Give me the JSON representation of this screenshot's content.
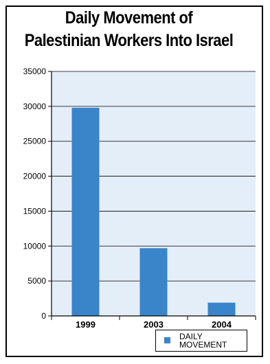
{
  "chart_data": {
    "type": "bar",
    "title_lines": [
      "Daily Movement of",
      "Palestinian Workers Into Israel"
    ],
    "categories": [
      "1999",
      "2003",
      "2004"
    ],
    "series": [
      {
        "name": "DAILY MOVEMENT",
        "values": [
          29800,
          9700,
          1900
        ]
      }
    ],
    "ylim": [
      0,
      35000
    ],
    "yticks": [
      "0",
      "5000",
      "10000",
      "15000",
      "20000",
      "25000",
      "30000",
      "35000"
    ],
    "ytick_values": [
      0,
      5000,
      10000,
      15000,
      20000,
      25000,
      30000,
      35000
    ],
    "grid": true,
    "legend_position": "bottom-right",
    "bar_color": "#3a84c9",
    "plot_background": "#e4eef9"
  }
}
